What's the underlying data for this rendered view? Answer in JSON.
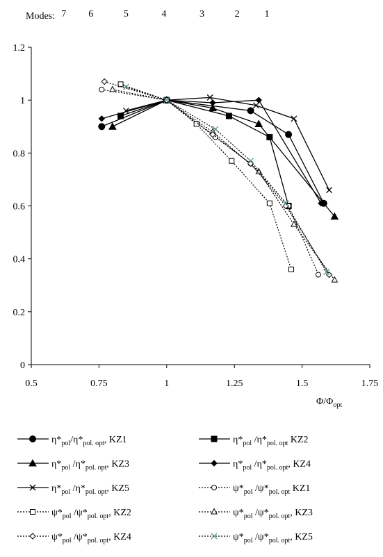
{
  "chart_data": {
    "type": "line",
    "xlim": [
      0.5,
      1.75
    ],
    "ylim": [
      0,
      1.2
    ],
    "x_ticks": [
      "0.5",
      "0.75",
      "1",
      "1.25",
      "1.5",
      "1.75"
    ],
    "y_ticks": [
      "0",
      "0.2",
      "0.4",
      "0.6",
      "0.8",
      "1",
      "1.2"
    ],
    "grid": "none",
    "xlabel": "Φ/Φ",
    "xlabel_sub": "opt",
    "modes_label": "Modes:",
    "modes": [
      {
        "label": "7",
        "x": 0.62
      },
      {
        "label": "6",
        "x": 0.72
      },
      {
        "label": "5",
        "x": 0.85
      },
      {
        "label": "4",
        "x": 0.99
      },
      {
        "label": "3",
        "x": 1.13
      },
      {
        "label": "2",
        "x": 1.26
      },
      {
        "label": "1",
        "x": 1.37
      }
    ],
    "legend_position": "bottom",
    "series": [
      {
        "name": "η*pol/η*pol. opt, KZ1",
        "style": "solid",
        "marker": "circle",
        "x": [
          0.76,
          1.0,
          1.31,
          1.45,
          1.58
        ],
        "y": [
          0.9,
          1.0,
          0.96,
          0.87,
          0.61
        ]
      },
      {
        "name": "η*pol /η*pol. opt, KZ2",
        "style": "solid",
        "marker": "square",
        "x": [
          0.83,
          1.0,
          1.23,
          1.38,
          1.45
        ],
        "y": [
          0.94,
          1.0,
          0.94,
          0.86,
          0.6
        ]
      },
      {
        "name": "η*pol /η*pol. opt, KZ3",
        "style": "solid",
        "marker": "triangle",
        "x": [
          0.8,
          1.0,
          1.17,
          1.34,
          1.62
        ],
        "y": [
          0.9,
          1.0,
          0.97,
          0.91,
          0.56
        ]
      },
      {
        "name": "η*pol /η*pol. opt, KZ4",
        "style": "solid",
        "marker": "diamond",
        "x": [
          0.76,
          1.0,
          1.17,
          1.34,
          1.57
        ],
        "y": [
          0.93,
          1.0,
          0.99,
          1.0,
          0.61
        ]
      },
      {
        "name": "η*pol /η*pol. opt, KZ5",
        "style": "solid",
        "marker": "x",
        "x": [
          0.85,
          1.0,
          1.16,
          1.33,
          1.47,
          1.6
        ],
        "y": [
          0.96,
          1.0,
          1.01,
          0.98,
          0.93,
          0.66
        ]
      },
      {
        "name": "ψ*pol /ψ*pol. opt KZ1",
        "style": "dotted",
        "marker": "circle-open",
        "x": [
          0.76,
          1.0,
          1.18,
          1.31,
          1.45,
          1.56
        ],
        "y": [
          1.04,
          1.0,
          0.86,
          0.76,
          0.6,
          0.34
        ]
      },
      {
        "name": "ψ*pol /ψ*pol. opt, KZ2",
        "style": "dotted",
        "marker": "square-open",
        "x": [
          0.83,
          1.0,
          1.11,
          1.24,
          1.38,
          1.46
        ],
        "y": [
          1.06,
          1.0,
          0.91,
          0.77,
          0.61,
          0.36
        ]
      },
      {
        "name": "ψ*pol /ψ*pol. opt, KZ3",
        "style": "dotted",
        "marker": "triangle-open",
        "x": [
          0.8,
          1.0,
          1.17,
          1.34,
          1.47,
          1.62
        ],
        "y": [
          1.04,
          1.0,
          0.88,
          0.73,
          0.53,
          0.32
        ]
      },
      {
        "name": "ψ*pol /ψ*pol. opt, KZ4",
        "style": "dotted",
        "marker": "diamond-open",
        "x": [
          0.77,
          1.0,
          1.17,
          1.31,
          1.44,
          1.6
        ],
        "y": [
          1.07,
          1.0,
          0.87,
          0.76,
          0.6,
          0.34
        ]
      },
      {
        "name": "ψ*pol /ψ*pol. opt, KZ5",
        "style": "dotted",
        "marker": "x-open",
        "x": [
          0.85,
          1.0,
          1.18,
          1.31,
          1.44,
          1.59
        ],
        "y": [
          1.05,
          1.0,
          0.89,
          0.77,
          0.61,
          0.35
        ]
      }
    ]
  },
  "legend": {
    "items": [
      {
        "sym": "η",
        "den": "/η",
        "sub": "pol. opt",
        "tail": ", KZ1"
      },
      {
        "sym": "η",
        "den": " /η",
        "sub": "pol. opt",
        "tail": " KZ2"
      },
      {
        "sym": "η",
        "den": " /η",
        "sub": "pol. opt",
        "tail": ", KZ3"
      },
      {
        "sym": "η",
        "den": " /η",
        "sub": "pol. opt",
        "tail": ", KZ4"
      },
      {
        "sym": "η",
        "den": " /η",
        "sub": "pol. opt",
        "tail": ", KZ5"
      },
      {
        "sym": "ψ",
        "den": " /ψ",
        "sub": "pol. opt",
        "tail": " KZ1"
      },
      {
        "sym": "ψ",
        "den": " /ψ",
        "sub": "pol. opt",
        "tail": ", KZ2"
      },
      {
        "sym": "ψ",
        "den": " /ψ",
        "sub": "pol. opt",
        "tail": ", KZ3"
      },
      {
        "sym": "ψ",
        "den": " /ψ",
        "sub": "pol. opt",
        "tail": ", KZ4"
      },
      {
        "sym": "ψ",
        "den": " /ψ",
        "sub": "pol. opt",
        "tail": ", KZ5"
      }
    ]
  },
  "colors": {
    "ink": "#000000",
    "kz5_open": "#4a8a86"
  }
}
